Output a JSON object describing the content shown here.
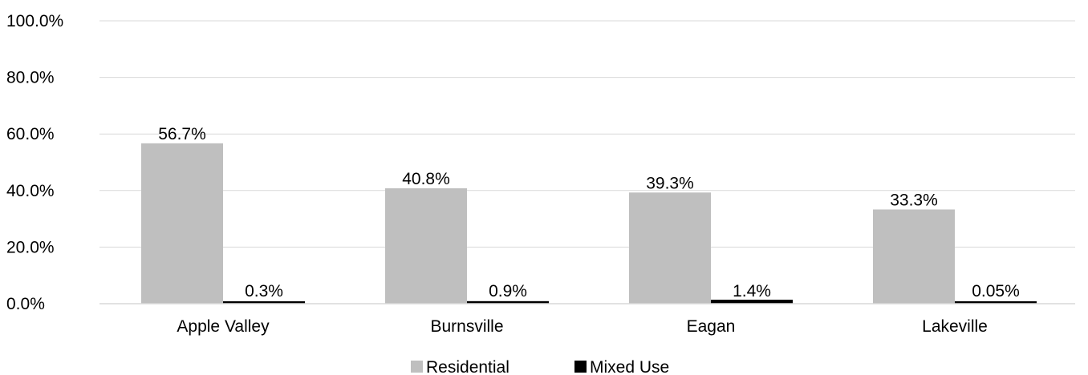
{
  "chart_data": {
    "type": "bar",
    "title": "",
    "xlabel": "",
    "ylabel": "",
    "ylim": [
      0,
      100
    ],
    "grid": true,
    "legend_position": "bottom",
    "y_ticks": [
      "0.0%",
      "20.0%",
      "40.0%",
      "60.0%",
      "80.0%",
      "100.0%"
    ],
    "categories": [
      "Apple Valley",
      "Burnsville",
      "Eagan",
      "Lakeville"
    ],
    "series": [
      {
        "name": "Residential",
        "color": "#bfbfbf",
        "values": [
          56.7,
          40.8,
          39.3,
          33.3
        ],
        "labels": [
          "56.7%",
          "40.8%",
          "39.3%",
          "33.3%"
        ]
      },
      {
        "name": "Mixed Use",
        "color": "#000000",
        "values": [
          0.3,
          0.9,
          1.4,
          0.05
        ],
        "labels": [
          "0.3%",
          "0.9%",
          "1.4%",
          "0.05%"
        ]
      }
    ]
  }
}
